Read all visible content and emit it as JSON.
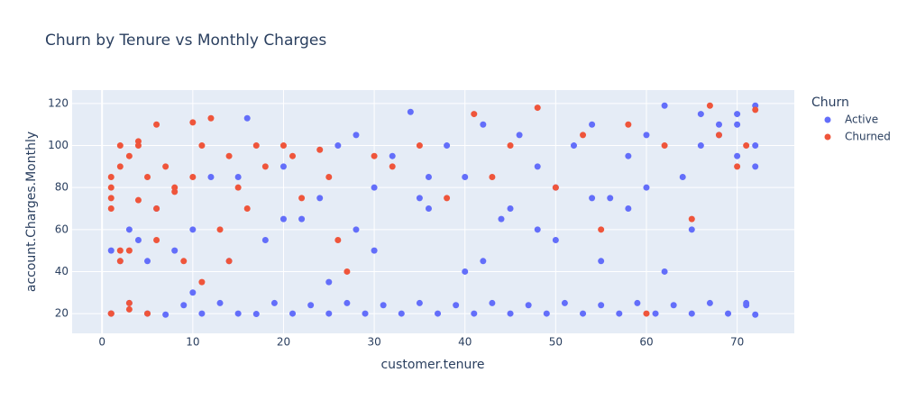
{
  "chart_data": {
    "type": "scatter",
    "title": "Churn by Tenure vs Monthly Charges",
    "x_label": "customer.tenure",
    "y_label": "account.Charges.Monthly",
    "legend_title": "Churn",
    "legend_position": "right",
    "xlim": [
      -3.3,
      76.3
    ],
    "xticks": [
      0,
      10,
      20,
      30,
      40,
      50,
      60,
      70
    ],
    "ylim": [
      10.6,
      126.4
    ],
    "yticks": [
      20,
      40,
      60,
      80,
      100,
      120
    ],
    "grid": true,
    "series": [
      {
        "name": "Active",
        "color": "#636efa",
        "x": [
          1,
          2,
          3,
          4,
          5,
          6,
          7,
          8,
          9,
          10,
          11,
          12,
          13,
          14,
          15,
          16,
          17,
          18,
          19,
          20,
          21,
          22,
          23,
          24,
          25,
          26,
          27,
          28,
          29,
          30,
          31,
          32,
          33,
          34,
          35,
          36,
          37,
          38,
          39,
          40,
          41,
          42,
          43,
          44,
          45,
          46,
          47,
          48,
          49,
          50,
          51,
          52,
          53,
          54,
          55,
          56,
          57,
          58,
          59,
          60,
          61,
          62,
          63,
          64,
          65,
          66,
          67,
          68,
          69,
          70,
          71,
          72,
          72,
          72,
          71,
          70,
          68,
          65,
          60,
          55,
          50,
          45,
          40,
          35,
          30,
          25,
          20,
          15,
          10,
          5,
          3,
          1,
          72,
          70,
          66,
          62,
          58,
          54,
          48,
          42,
          36,
          28
        ],
        "values": [
          20,
          45,
          25,
          55,
          20,
          70,
          19.5,
          50,
          24,
          60,
          20,
          85,
          25,
          45,
          20,
          113,
          19.8,
          55,
          25,
          90,
          20,
          65,
          24,
          75,
          20,
          100,
          25,
          60,
          20,
          80,
          24,
          95,
          20,
          116,
          25,
          70,
          20,
          100,
          24,
          85,
          20,
          110,
          25,
          65,
          20,
          105,
          24,
          90,
          20,
          80,
          25,
          100,
          20,
          110,
          24,
          75,
          20,
          95,
          25,
          105,
          20,
          119,
          24,
          85,
          20,
          100,
          25,
          110,
          20,
          115,
          24,
          119,
          19.5,
          90,
          25,
          110,
          105,
          60,
          80,
          45,
          55,
          70,
          40,
          75,
          50,
          35,
          65,
          85,
          30,
          45,
          60,
          50,
          100,
          95,
          115,
          40,
          70,
          75,
          60,
          45,
          85,
          105
        ]
      },
      {
        "name": "Churned",
        "color": "#EF553B",
        "x": [
          1,
          1,
          1,
          1,
          1,
          2,
          2,
          2,
          3,
          3,
          3,
          4,
          4,
          5,
          5,
          6,
          6,
          7,
          8,
          9,
          10,
          10,
          11,
          12,
          13,
          14,
          15,
          16,
          18,
          20,
          22,
          24,
          25,
          27,
          30,
          32,
          35,
          38,
          41,
          43,
          45,
          48,
          50,
          53,
          55,
          58,
          60,
          62,
          65,
          67,
          68,
          70,
          71,
          72,
          1,
          2,
          3,
          4,
          6,
          8,
          11,
          14,
          17,
          21,
          26
        ],
        "values": [
          70,
          75,
          80,
          85,
          20,
          90,
          45,
          100,
          95,
          50,
          25,
          74,
          102,
          85,
          20,
          110,
          55,
          90,
          78,
          45,
          111,
          85,
          100,
          113,
          60,
          95,
          80,
          70,
          90,
          100,
          75,
          98,
          85,
          40,
          95,
          90,
          100,
          75,
          115,
          85,
          100,
          118,
          80,
          105,
          60,
          110,
          20,
          100,
          65,
          119,
          105,
          90,
          100,
          117,
          20,
          50,
          22,
          100,
          70,
          80,
          35,
          45,
          100,
          95,
          55
        ]
      }
    ]
  }
}
